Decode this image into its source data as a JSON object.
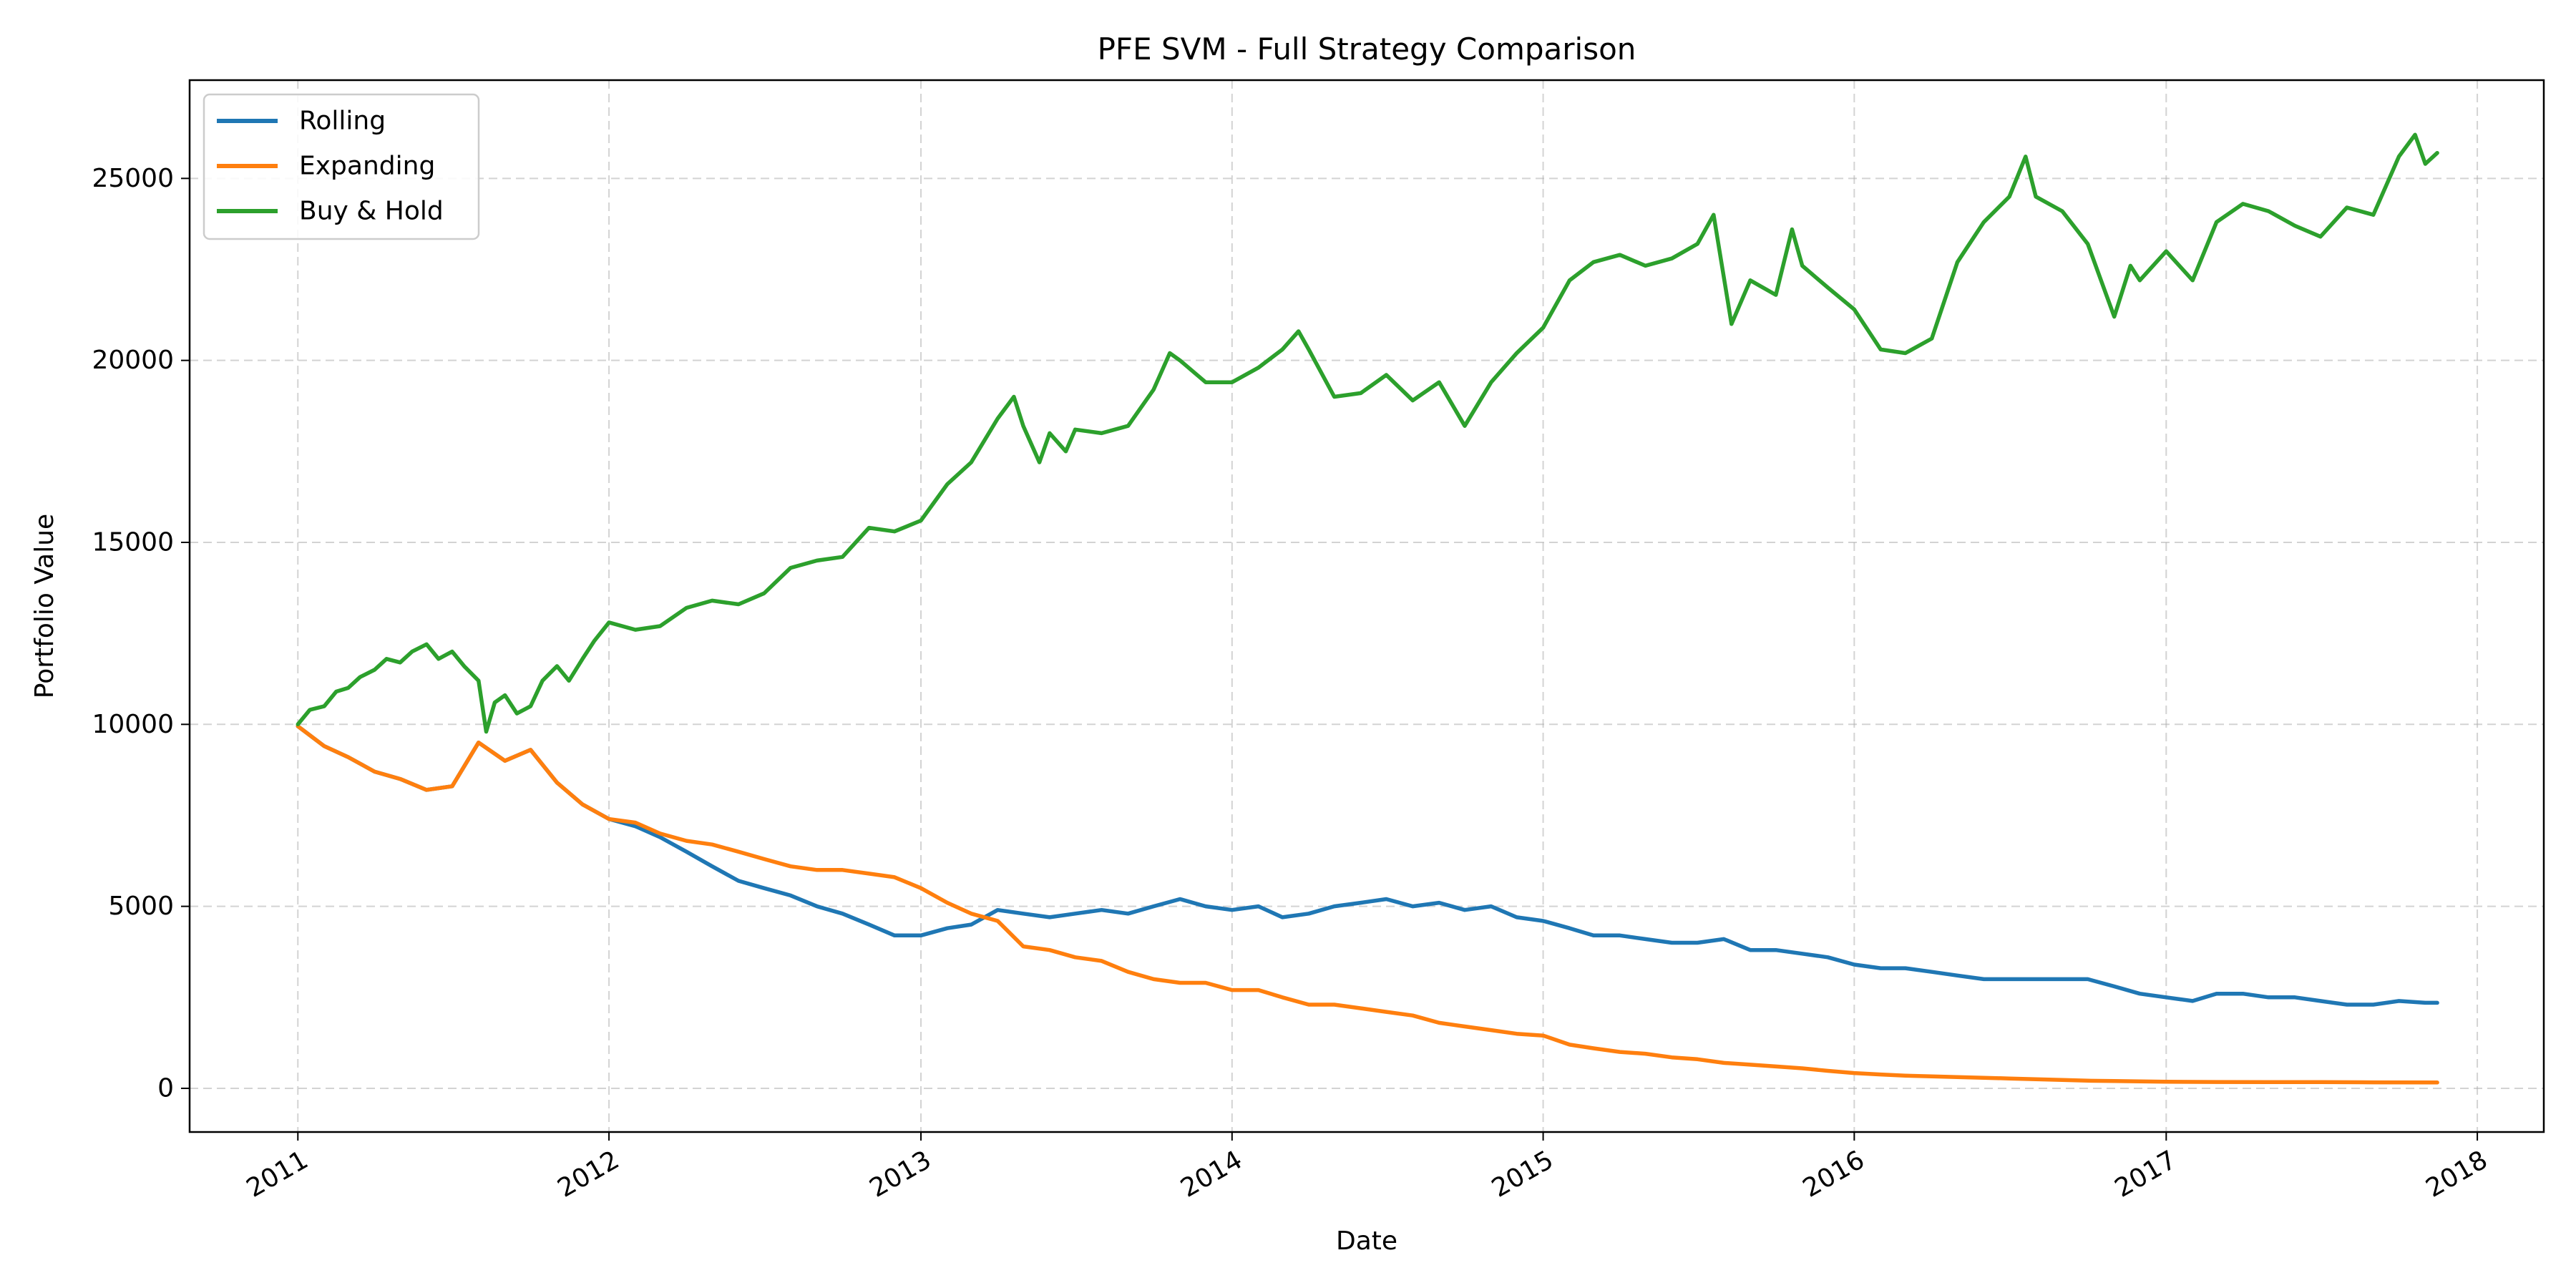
{
  "chart_data": {
    "type": "line",
    "title": "PFE SVM - Full Strategy Comparison",
    "xlabel": "Date",
    "ylabel": "Portfolio Value",
    "xlim": [
      "2010-08-27",
      "2018-03-20"
    ],
    "ylim": [
      -1200,
      27700
    ],
    "x_ticks": [
      "2011",
      "2012",
      "2013",
      "2014",
      "2015",
      "2016",
      "2017",
      "2018"
    ],
    "y_ticks": [
      0,
      5000,
      10000,
      15000,
      20000,
      25000
    ],
    "grid": true,
    "legend_position": "top-left",
    "series": [
      {
        "name": "Rolling",
        "color": "#1f77b4",
        "points": [
          [
            "2011-01-01",
            9950
          ],
          [
            "2011-02-01",
            9400
          ],
          [
            "2011-03-01",
            9100
          ],
          [
            "2011-04-01",
            8700
          ],
          [
            "2011-05-01",
            8500
          ],
          [
            "2011-06-01",
            8200
          ],
          [
            "2011-07-01",
            8300
          ],
          [
            "2011-08-01",
            9500
          ],
          [
            "2011-09-01",
            9000
          ],
          [
            "2011-10-01",
            9300
          ],
          [
            "2011-11-01",
            8400
          ],
          [
            "2011-12-01",
            7800
          ],
          [
            "2012-01-01",
            7400
          ],
          [
            "2012-02-01",
            7200
          ],
          [
            "2012-03-01",
            6900
          ],
          [
            "2012-04-01",
            6500
          ],
          [
            "2012-05-01",
            6100
          ],
          [
            "2012-06-01",
            5700
          ],
          [
            "2012-07-01",
            5500
          ],
          [
            "2012-08-01",
            5300
          ],
          [
            "2012-09-01",
            5000
          ],
          [
            "2012-10-01",
            4800
          ],
          [
            "2012-11-01",
            4500
          ],
          [
            "2012-12-01",
            4200
          ],
          [
            "2013-01-01",
            4200
          ],
          [
            "2013-02-01",
            4400
          ],
          [
            "2013-03-01",
            4500
          ],
          [
            "2013-04-01",
            4900
          ],
          [
            "2013-05-01",
            4800
          ],
          [
            "2013-06-01",
            4700
          ],
          [
            "2013-07-01",
            4800
          ],
          [
            "2013-08-01",
            4900
          ],
          [
            "2013-09-01",
            4800
          ],
          [
            "2013-10-01",
            5000
          ],
          [
            "2013-11-01",
            5200
          ],
          [
            "2013-12-01",
            5000
          ],
          [
            "2014-01-01",
            4900
          ],
          [
            "2014-02-01",
            5000
          ],
          [
            "2014-03-01",
            4700
          ],
          [
            "2014-04-01",
            4800
          ],
          [
            "2014-05-01",
            5000
          ],
          [
            "2014-06-01",
            5100
          ],
          [
            "2014-07-01",
            5200
          ],
          [
            "2014-08-01",
            5000
          ],
          [
            "2014-09-01",
            5100
          ],
          [
            "2014-10-01",
            4900
          ],
          [
            "2014-11-01",
            5000
          ],
          [
            "2014-12-01",
            4700
          ],
          [
            "2015-01-01",
            4600
          ],
          [
            "2015-02-01",
            4400
          ],
          [
            "2015-03-01",
            4200
          ],
          [
            "2015-04-01",
            4200
          ],
          [
            "2015-05-01",
            4100
          ],
          [
            "2015-06-01",
            4000
          ],
          [
            "2015-07-01",
            4000
          ],
          [
            "2015-08-01",
            4100
          ],
          [
            "2015-09-01",
            3800
          ],
          [
            "2015-10-01",
            3800
          ],
          [
            "2015-11-01",
            3700
          ],
          [
            "2015-12-01",
            3600
          ],
          [
            "2016-01-01",
            3400
          ],
          [
            "2016-02-01",
            3300
          ],
          [
            "2016-03-01",
            3300
          ],
          [
            "2016-04-01",
            3200
          ],
          [
            "2016-05-01",
            3100
          ],
          [
            "2016-06-01",
            3000
          ],
          [
            "2016-07-01",
            3000
          ],
          [
            "2016-08-01",
            3000
          ],
          [
            "2016-09-01",
            3000
          ],
          [
            "2016-10-01",
            3000
          ],
          [
            "2016-11-01",
            2800
          ],
          [
            "2016-12-01",
            2600
          ],
          [
            "2017-01-01",
            2500
          ],
          [
            "2017-02-01",
            2400
          ],
          [
            "2017-03-01",
            2600
          ],
          [
            "2017-04-01",
            2600
          ],
          [
            "2017-05-01",
            2500
          ],
          [
            "2017-06-01",
            2500
          ],
          [
            "2017-07-01",
            2400
          ],
          [
            "2017-08-01",
            2300
          ],
          [
            "2017-09-01",
            2300
          ],
          [
            "2017-10-01",
            2400
          ],
          [
            "2017-11-01",
            2350
          ],
          [
            "2017-11-15",
            2350
          ]
        ]
      },
      {
        "name": "Expanding",
        "color": "#ff7f0e",
        "points": [
          [
            "2011-01-01",
            9950
          ],
          [
            "2011-02-01",
            9400
          ],
          [
            "2011-03-01",
            9100
          ],
          [
            "2011-04-01",
            8700
          ],
          [
            "2011-05-01",
            8500
          ],
          [
            "2011-06-01",
            8200
          ],
          [
            "2011-07-01",
            8300
          ],
          [
            "2011-08-01",
            9500
          ],
          [
            "2011-09-01",
            9000
          ],
          [
            "2011-10-01",
            9300
          ],
          [
            "2011-11-01",
            8400
          ],
          [
            "2011-12-01",
            7800
          ],
          [
            "2012-01-01",
            7400
          ],
          [
            "2012-02-01",
            7300
          ],
          [
            "2012-03-01",
            7000
          ],
          [
            "2012-04-01",
            6800
          ],
          [
            "2012-05-01",
            6700
          ],
          [
            "2012-06-01",
            6500
          ],
          [
            "2012-07-01",
            6300
          ],
          [
            "2012-08-01",
            6100
          ],
          [
            "2012-09-01",
            6000
          ],
          [
            "2012-10-01",
            6000
          ],
          [
            "2012-11-01",
            5900
          ],
          [
            "2012-12-01",
            5800
          ],
          [
            "2013-01-01",
            5500
          ],
          [
            "2013-02-01",
            5100
          ],
          [
            "2013-03-01",
            4800
          ],
          [
            "2013-04-01",
            4600
          ],
          [
            "2013-05-01",
            3900
          ],
          [
            "2013-06-01",
            3800
          ],
          [
            "2013-07-01",
            3600
          ],
          [
            "2013-08-01",
            3500
          ],
          [
            "2013-09-01",
            3200
          ],
          [
            "2013-10-01",
            3000
          ],
          [
            "2013-11-01",
            2900
          ],
          [
            "2013-12-01",
            2900
          ],
          [
            "2014-01-01",
            2700
          ],
          [
            "2014-02-01",
            2700
          ],
          [
            "2014-03-01",
            2500
          ],
          [
            "2014-04-01",
            2300
          ],
          [
            "2014-05-01",
            2300
          ],
          [
            "2014-06-01",
            2200
          ],
          [
            "2014-07-01",
            2100
          ],
          [
            "2014-08-01",
            2000
          ],
          [
            "2014-09-01",
            1800
          ],
          [
            "2014-10-01",
            1700
          ],
          [
            "2014-11-01",
            1600
          ],
          [
            "2014-12-01",
            1500
          ],
          [
            "2015-01-01",
            1450
          ],
          [
            "2015-02-01",
            1200
          ],
          [
            "2015-03-01",
            1100
          ],
          [
            "2015-04-01",
            1000
          ],
          [
            "2015-05-01",
            950
          ],
          [
            "2015-06-01",
            850
          ],
          [
            "2015-07-01",
            800
          ],
          [
            "2015-08-01",
            700
          ],
          [
            "2015-09-01",
            650
          ],
          [
            "2015-10-01",
            600
          ],
          [
            "2015-11-01",
            550
          ],
          [
            "2015-12-01",
            480
          ],
          [
            "2016-01-01",
            420
          ],
          [
            "2016-02-01",
            380
          ],
          [
            "2016-03-01",
            350
          ],
          [
            "2016-04-01",
            330
          ],
          [
            "2016-05-01",
            310
          ],
          [
            "2016-06-01",
            290
          ],
          [
            "2016-07-01",
            270
          ],
          [
            "2016-08-01",
            250
          ],
          [
            "2016-09-01",
            230
          ],
          [
            "2016-10-01",
            210
          ],
          [
            "2016-11-01",
            200
          ],
          [
            "2016-12-01",
            190
          ],
          [
            "2017-01-01",
            180
          ],
          [
            "2017-03-01",
            175
          ],
          [
            "2017-05-01",
            170
          ],
          [
            "2017-07-01",
            170
          ],
          [
            "2017-09-01",
            165
          ],
          [
            "2017-11-15",
            160
          ]
        ]
      },
      {
        "name": "Buy & Hold",
        "color": "#2ca02c",
        "points": [
          [
            "2011-01-01",
            10000
          ],
          [
            "2011-01-15",
            10400
          ],
          [
            "2011-02-01",
            10500
          ],
          [
            "2011-02-15",
            10900
          ],
          [
            "2011-03-01",
            11000
          ],
          [
            "2011-03-15",
            11300
          ],
          [
            "2011-04-01",
            11500
          ],
          [
            "2011-04-15",
            11800
          ],
          [
            "2011-05-01",
            11700
          ],
          [
            "2011-05-15",
            12000
          ],
          [
            "2011-06-01",
            12200
          ],
          [
            "2011-06-15",
            11800
          ],
          [
            "2011-07-01",
            12000
          ],
          [
            "2011-07-15",
            11600
          ],
          [
            "2011-08-01",
            11200
          ],
          [
            "2011-08-10",
            9800
          ],
          [
            "2011-08-20",
            10600
          ],
          [
            "2011-09-01",
            10800
          ],
          [
            "2011-09-15",
            10300
          ],
          [
            "2011-10-01",
            10500
          ],
          [
            "2011-10-15",
            11200
          ],
          [
            "2011-11-01",
            11600
          ],
          [
            "2011-11-15",
            11200
          ],
          [
            "2011-12-01",
            11800
          ],
          [
            "2011-12-15",
            12300
          ],
          [
            "2012-01-01",
            12800
          ],
          [
            "2012-02-01",
            12600
          ],
          [
            "2012-03-01",
            12700
          ],
          [
            "2012-04-01",
            13200
          ],
          [
            "2012-05-01",
            13400
          ],
          [
            "2012-06-01",
            13300
          ],
          [
            "2012-07-01",
            13600
          ],
          [
            "2012-08-01",
            14300
          ],
          [
            "2012-09-01",
            14500
          ],
          [
            "2012-10-01",
            14600
          ],
          [
            "2012-11-01",
            15400
          ],
          [
            "2012-12-01",
            15300
          ],
          [
            "2013-01-01",
            15600
          ],
          [
            "2013-02-01",
            16600
          ],
          [
            "2013-03-01",
            17200
          ],
          [
            "2013-04-01",
            18400
          ],
          [
            "2013-04-20",
            19000
          ],
          [
            "2013-05-01",
            18200
          ],
          [
            "2013-05-20",
            17200
          ],
          [
            "2013-06-01",
            18000
          ],
          [
            "2013-06-20",
            17500
          ],
          [
            "2013-07-01",
            18100
          ],
          [
            "2013-08-01",
            18000
          ],
          [
            "2013-09-01",
            18200
          ],
          [
            "2013-10-01",
            19200
          ],
          [
            "2013-10-20",
            20200
          ],
          [
            "2013-11-01",
            20000
          ],
          [
            "2013-12-01",
            19400
          ],
          [
            "2014-01-01",
            19400
          ],
          [
            "2014-02-01",
            19800
          ],
          [
            "2014-03-01",
            20300
          ],
          [
            "2014-03-20",
            20800
          ],
          [
            "2014-04-01",
            20300
          ],
          [
            "2014-05-01",
            19000
          ],
          [
            "2014-06-01",
            19100
          ],
          [
            "2014-07-01",
            19600
          ],
          [
            "2014-08-01",
            18900
          ],
          [
            "2014-09-01",
            19400
          ],
          [
            "2014-10-01",
            18200
          ],
          [
            "2014-11-01",
            19400
          ],
          [
            "2014-12-01",
            20200
          ],
          [
            "2015-01-01",
            20900
          ],
          [
            "2015-02-01",
            22200
          ],
          [
            "2015-03-01",
            22700
          ],
          [
            "2015-04-01",
            22900
          ],
          [
            "2015-05-01",
            22600
          ],
          [
            "2015-06-01",
            22800
          ],
          [
            "2015-07-01",
            23200
          ],
          [
            "2015-07-20",
            24000
          ],
          [
            "2015-08-10",
            21000
          ],
          [
            "2015-09-01",
            22200
          ],
          [
            "2015-10-01",
            21800
          ],
          [
            "2015-10-20",
            23600
          ],
          [
            "2015-11-01",
            22600
          ],
          [
            "2015-12-01",
            22000
          ],
          [
            "2016-01-01",
            21400
          ],
          [
            "2016-02-01",
            20300
          ],
          [
            "2016-03-01",
            20200
          ],
          [
            "2016-04-01",
            20600
          ],
          [
            "2016-05-01",
            22700
          ],
          [
            "2016-06-01",
            23800
          ],
          [
            "2016-07-01",
            24500
          ],
          [
            "2016-07-20",
            25600
          ],
          [
            "2016-08-01",
            24500
          ],
          [
            "2016-09-01",
            24100
          ],
          [
            "2016-10-01",
            23200
          ],
          [
            "2016-11-01",
            21200
          ],
          [
            "2016-11-20",
            22600
          ],
          [
            "2016-12-01",
            22200
          ],
          [
            "2017-01-01",
            23000
          ],
          [
            "2017-02-01",
            22200
          ],
          [
            "2017-03-01",
            23800
          ],
          [
            "2017-04-01",
            24300
          ],
          [
            "2017-05-01",
            24100
          ],
          [
            "2017-06-01",
            23700
          ],
          [
            "2017-07-01",
            23400
          ],
          [
            "2017-08-01",
            24200
          ],
          [
            "2017-09-01",
            24000
          ],
          [
            "2017-10-01",
            25600
          ],
          [
            "2017-10-20",
            26200
          ],
          [
            "2017-11-01",
            25400
          ],
          [
            "2017-11-15",
            25700
          ]
        ]
      }
    ]
  }
}
